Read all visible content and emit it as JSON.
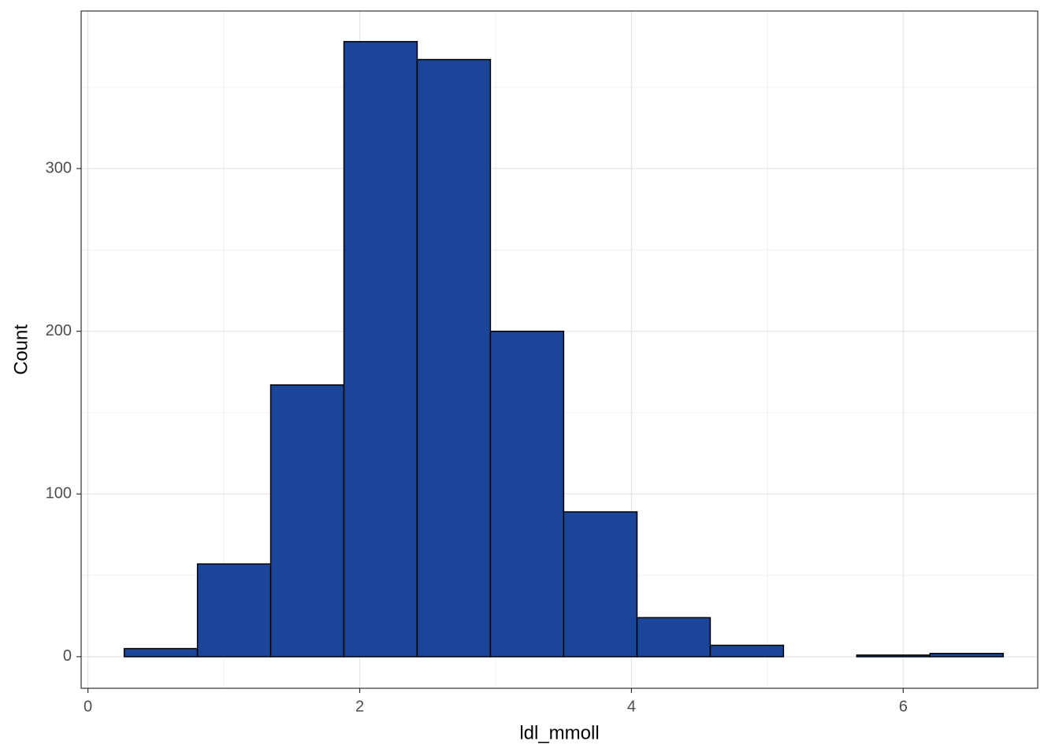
{
  "chart_data": {
    "type": "histogram",
    "x_label": "ldl_mmoll",
    "y_label": "Count",
    "bins": [
      0.267,
      0.806,
      1.345,
      1.884,
      2.423,
      2.962,
      3.501,
      4.041,
      4.58,
      5.119,
      5.658,
      6.197,
      6.736
    ],
    "counts": [
      5,
      57,
      167,
      378,
      367,
      200,
      89,
      24,
      7,
      0,
      1,
      2
    ],
    "color": "#1a4599",
    "xlim": [
      -0.05,
      6.99
    ],
    "xticks": [
      0,
      2,
      4,
      6
    ],
    "ylim": [
      -19.4,
      396.8
    ],
    "yticks": [
      0,
      100,
      200,
      300
    ],
    "grid": true
  }
}
